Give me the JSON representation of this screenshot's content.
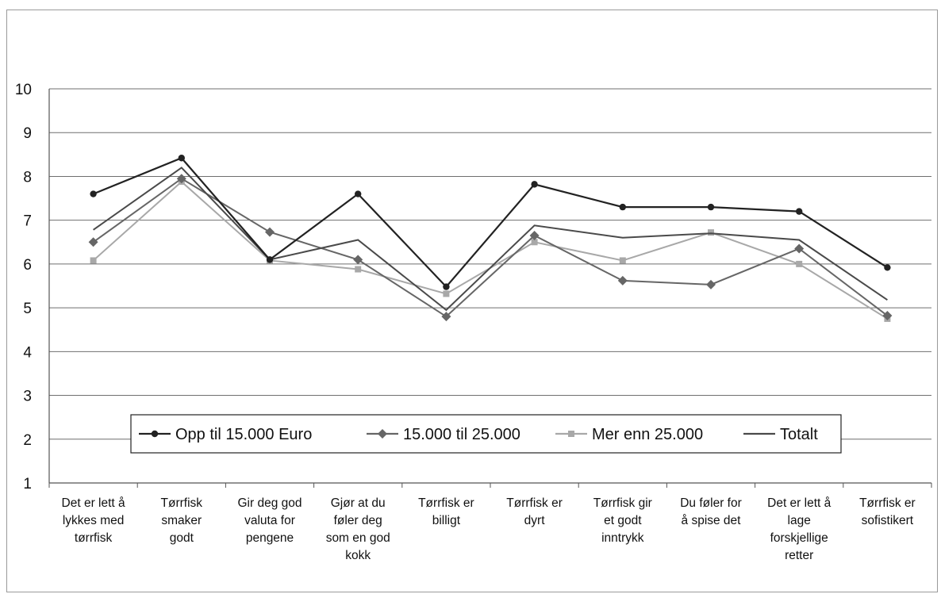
{
  "chart_data": {
    "type": "line",
    "title": "",
    "xlabel": "",
    "ylabel": "",
    "ylim": [
      1,
      10
    ],
    "yticks": [
      "1",
      "2",
      "3",
      "4",
      "5",
      "6",
      "7",
      "8",
      "9",
      "10"
    ],
    "grid": true,
    "legend_position": "bottom-center-inside",
    "categories": [
      [
        "Det er lett å",
        "lykkes med",
        "tørrfisk"
      ],
      [
        "Tørrfisk",
        "smaker",
        "godt"
      ],
      [
        "Gir deg god",
        "valuta for",
        "pengene"
      ],
      [
        "Gjør at du",
        "føler deg",
        "som en god",
        "kokk"
      ],
      [
        "Tørrfisk er",
        "billigt"
      ],
      [
        "Tørrfisk er",
        "dyrt"
      ],
      [
        "Tørrfisk gir",
        "et godt",
        "inntrykk"
      ],
      [
        "Du føler for",
        "å spise det"
      ],
      [
        "Det er lett å",
        "lage",
        "forskjellige",
        "retter"
      ],
      [
        "Tørrfisk er",
        "sofistikert"
      ]
    ],
    "series": [
      {
        "name": "Opp til 15.000 Euro",
        "marker": "circle",
        "color": "#222222",
        "values": [
          7.6,
          8.42,
          6.1,
          7.6,
          5.48,
          7.82,
          7.3,
          7.3,
          7.2,
          5.92
        ]
      },
      {
        "name": "15.000 til 25.000",
        "marker": "diamond",
        "color": "#666666",
        "values": [
          6.5,
          7.95,
          6.73,
          6.1,
          4.8,
          6.65,
          5.62,
          5.53,
          6.35,
          4.82
        ]
      },
      {
        "name": "Mer enn 25.000",
        "marker": "square",
        "color": "#a8a8a8",
        "values": [
          6.08,
          7.88,
          6.08,
          5.88,
          5.32,
          6.5,
          6.08,
          6.72,
          6.0,
          4.75
        ]
      },
      {
        "name": "Totalt",
        "marker": "none",
        "color": "#4a4a4a",
        "values": [
          6.78,
          8.2,
          6.1,
          6.55,
          4.95,
          6.88,
          6.6,
          6.7,
          6.55,
          5.18
        ]
      }
    ]
  }
}
